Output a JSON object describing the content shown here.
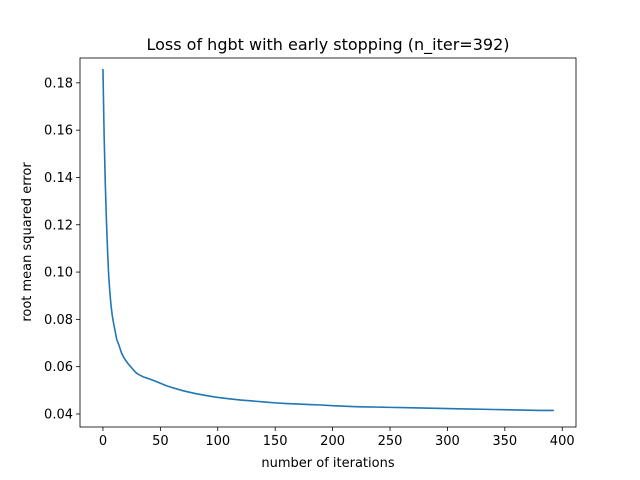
{
  "chart_data": {
    "type": "line",
    "title": "Loss of hgbt with early stopping (n_iter=392)",
    "xlabel": "number of iterations",
    "ylabel": "root mean squared error",
    "xlim": [
      -20,
      412
    ],
    "ylim": [
      0.0345,
      0.1905
    ],
    "x_ticks": [
      0,
      50,
      100,
      150,
      200,
      250,
      300,
      350,
      400
    ],
    "y_ticks": [
      0.04,
      0.06,
      0.08,
      0.1,
      0.12,
      0.14,
      0.16,
      0.18
    ],
    "y_tick_labels": [
      "0.04",
      "0.06",
      "0.08",
      "0.10",
      "0.12",
      "0.14",
      "0.16",
      "0.18"
    ],
    "grid": false,
    "line_color": "#1f77b4",
    "series": [
      {
        "x": [
          0,
          1,
          2,
          3,
          4,
          5,
          6,
          7,
          8,
          9,
          10,
          12,
          14,
          16,
          18,
          20,
          22,
          25,
          28,
          30,
          35,
          40,
          45,
          50,
          55,
          60,
          70,
          80,
          90,
          100,
          110,
          120,
          130,
          140,
          150,
          160,
          170,
          180,
          190,
          200,
          210,
          220,
          230,
          240,
          250,
          260,
          270,
          280,
          290,
          300,
          310,
          320,
          330,
          340,
          350,
          360,
          370,
          380,
          392
        ],
        "y": [
          0.1855,
          0.158,
          0.138,
          0.122,
          0.109,
          0.0985,
          0.0915,
          0.086,
          0.082,
          0.079,
          0.0765,
          0.0715,
          0.069,
          0.066,
          0.064,
          0.0625,
          0.0612,
          0.0595,
          0.0578,
          0.057,
          0.0557,
          0.0549,
          0.054,
          0.053,
          0.052,
          0.0512,
          0.0498,
          0.0487,
          0.0478,
          0.047,
          0.0464,
          0.0459,
          0.0455,
          0.0451,
          0.0447,
          0.0444,
          0.0442,
          0.044,
          0.0438,
          0.0435,
          0.0433,
          0.0431,
          0.043,
          0.0429,
          0.0428,
          0.0427,
          0.0426,
          0.0425,
          0.0424,
          0.0423,
          0.0422,
          0.0421,
          0.042,
          0.0419,
          0.0418,
          0.0417,
          0.0416,
          0.0415,
          0.0415
        ]
      }
    ]
  }
}
